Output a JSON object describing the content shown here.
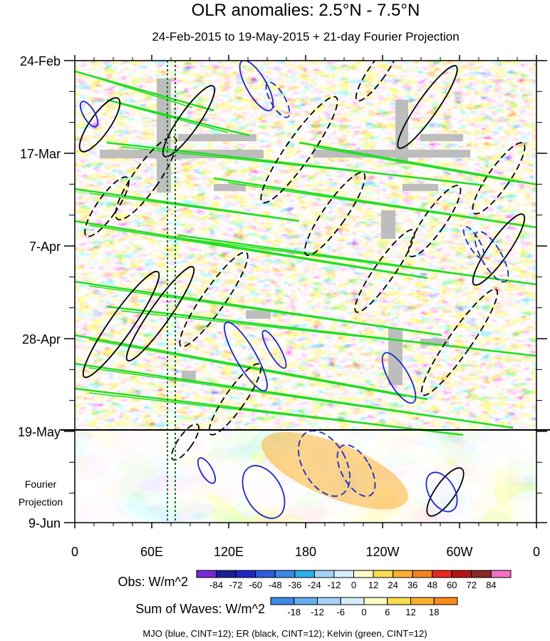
{
  "chart_data": {
    "type": "heatmap",
    "title": "OLR anomalies: 2.5°N - 7.5°N",
    "subtitle": "24-Feb-2015 to 19-May-2015 + 21-day Fourier Projection",
    "x_ticks": [
      "0",
      "60E",
      "120E",
      "180",
      "120W",
      "60W",
      "0"
    ],
    "x_range": [
      0,
      360
    ],
    "y_ticks": [
      "24-Feb",
      "17-Mar",
      "7-Apr",
      "28-Apr",
      "19-May"
    ],
    "y_bottom_label": "9-Jun",
    "projection_label": [
      "Fourier",
      "Projection"
    ],
    "obs_legend": {
      "label": "Obs: W/m^2",
      "levels": [
        "-84",
        "-72",
        "-60",
        "-48",
        "-36",
        "-24",
        "-12",
        "0",
        "12",
        "24",
        "36",
        "48",
        "60",
        "72",
        "84"
      ],
      "colors": [
        "#7a28d6",
        "#1c1c94",
        "#1e28c8",
        "#2e5ee0",
        "#3a8ae6",
        "#2cb0ec",
        "#a6d2f5",
        "#d6eefc",
        "#fffcc8",
        "#fddc50",
        "#fcb030",
        "#f7821a",
        "#e8281e",
        "#b41414",
        "#8a2828",
        "#f56ec8"
      ]
    },
    "waves_legend": {
      "label": "Sum of Waves: W/m^2",
      "levels": [
        "-18",
        "-12",
        "-6",
        "0",
        "6",
        "12",
        "18"
      ],
      "colors": [
        "#3a8ae6",
        "#66aef0",
        "#a6d2f5",
        "#d6eefc",
        "#fffcc8",
        "#fddc50",
        "#fcb030",
        "#f78a1a"
      ]
    },
    "contour_note": "MJO (blue, CINT=12); ER (black, CINT=12); Kelvin (green, CINT=12)",
    "wave_colors": {
      "mjo": "#1e28c8",
      "er": "#000000",
      "kelvin": "#22dd22"
    },
    "separator_date": "19-May"
  }
}
